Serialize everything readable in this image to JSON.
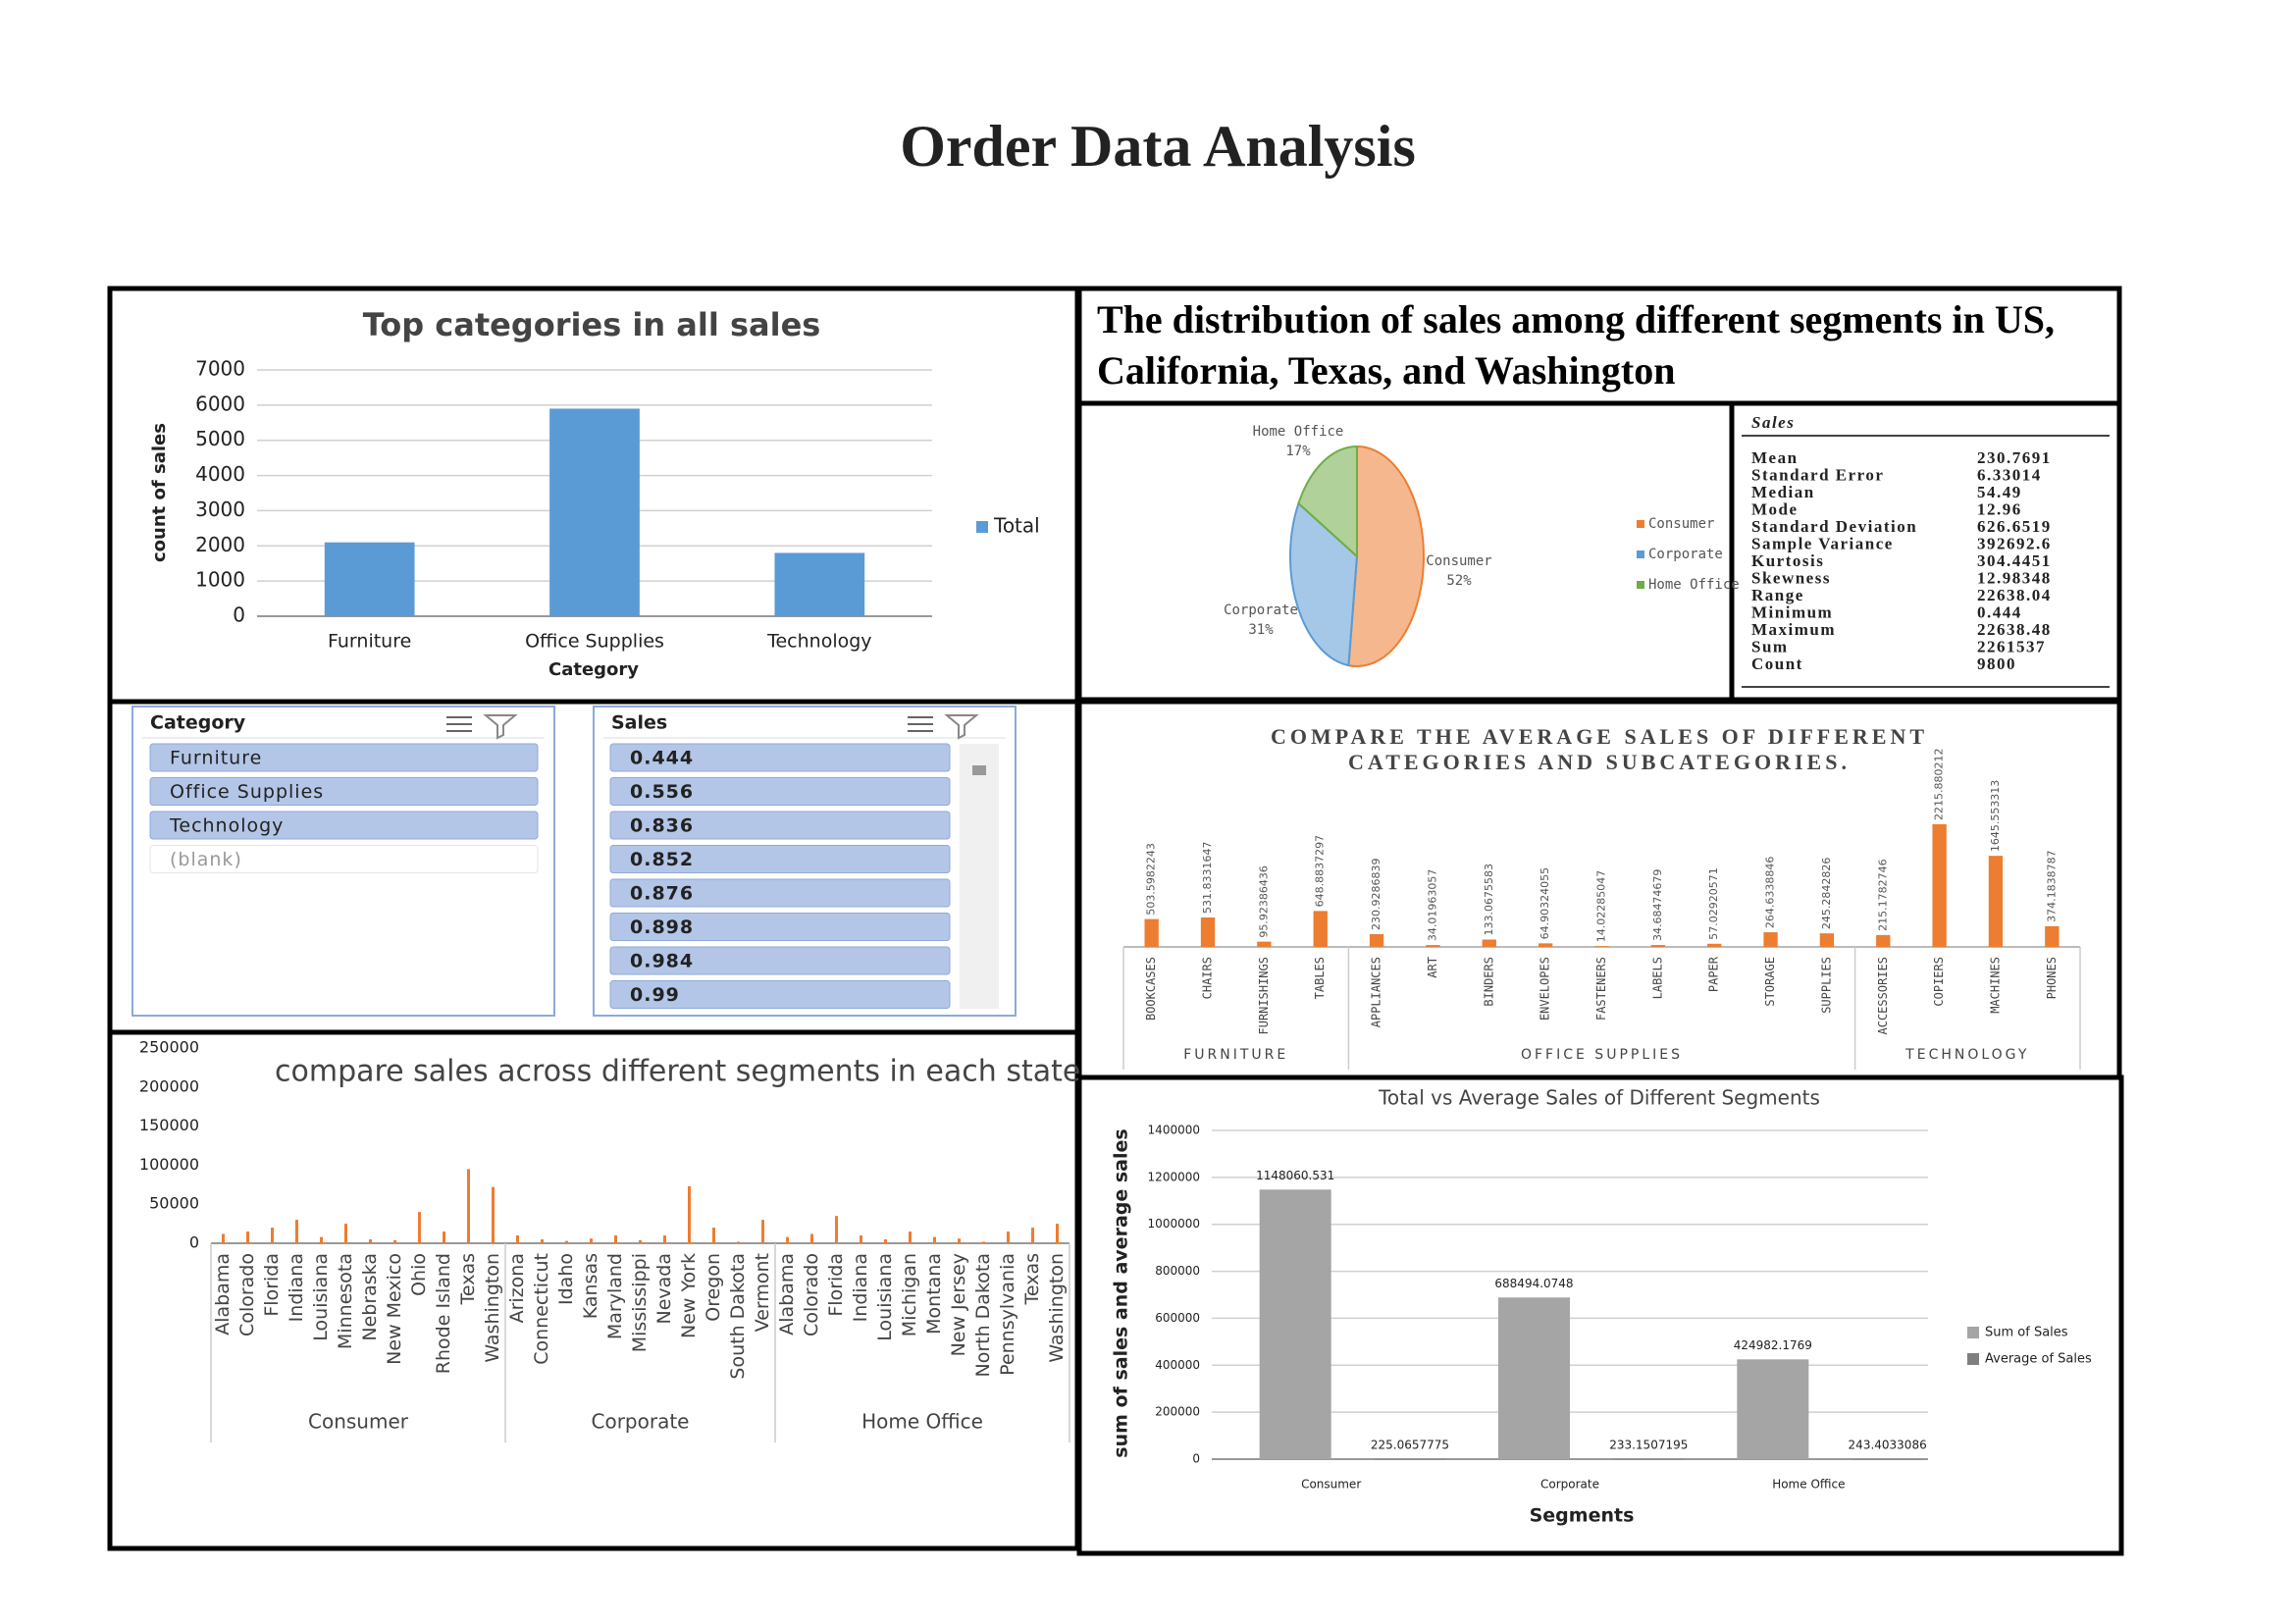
{
  "title": "Order Data Analysis",
  "chart_data": [
    {
      "type": "bar",
      "title": "Top categories in all sales",
      "x_label": "Category",
      "y_label": "count of sales",
      "categories": [
        "Furniture",
        "Office Supplies",
        "Technology"
      ],
      "series": [
        {
          "name": "Total",
          "color": "#5b9bd5",
          "values": [
            2100,
            5900,
            1800
          ]
        }
      ],
      "ylim": [
        0,
        7000
      ],
      "yticks": [
        0,
        1000,
        2000,
        3000,
        4000,
        5000,
        6000,
        7000
      ],
      "grid": true,
      "legend": "right"
    },
    {
      "type": "pie",
      "title": "The distribution of sales among different segments in US, California, Texas, and Washington",
      "categories": [
        "Consumer",
        "Corporate",
        "Home Office"
      ],
      "values": [
        52,
        31,
        17
      ],
      "value_labels": [
        "52%",
        "31%",
        "17%"
      ],
      "colors": [
        "#ed7d31",
        "#5b9bd5",
        "#70ad47"
      ],
      "legend": "right"
    },
    {
      "type": "bar",
      "title": "COMPARE THE AVERAGE SALES OF DIFFERENT CATEGORIES AND SUBCATEGORIES.",
      "color": "#ed7d31",
      "groups": [
        {
          "name": "FURNITURE",
          "categories": [
            "BOOKCASES",
            "CHAIRS",
            "FURNISHINGS",
            "TABLES"
          ],
          "values": [
            503.5982243,
            531.8331647,
            95.92386436,
            648.8837297
          ]
        },
        {
          "name": "OFFICE SUPPLIES",
          "categories": [
            "APPLIANCES",
            "ART",
            "BINDERS",
            "ENVELOPES",
            "FASTENERS",
            "LABELS",
            "PAPER",
            "STORAGE",
            "SUPPLIES"
          ],
          "values": [
            230.9286839,
            34.01963057,
            133.0675583,
            64.90324055,
            14.02285047,
            34.68474679,
            57.02920571,
            264.6338846,
            245.2842826
          ]
        },
        {
          "name": "TECHNOLOGY",
          "categories": [
            "ACCESSORIES",
            "COPIERS",
            "MACHINES",
            "PHONES"
          ],
          "values": [
            215.1782746,
            2215.880212,
            1645.553313,
            374.1838787
          ]
        }
      ]
    },
    {
      "type": "bar",
      "title": "compare sales across different segments in each state",
      "color": "#ed7d31",
      "ylim": [
        0,
        250000
      ],
      "yticks": [
        0,
        50000,
        100000,
        150000,
        200000,
        250000
      ],
      "groups": [
        {
          "name": "Consumer",
          "categories": [
            "Alabama",
            "Colorado",
            "Florida",
            "Indiana",
            "Louisiana",
            "Minnesota",
            "Nebraska",
            "New Mexico",
            "Ohio",
            "Rhode Island",
            "Texas",
            "Washington"
          ],
          "values": [
            12000,
            15000,
            20000,
            30000,
            8000,
            25000,
            5000,
            4000,
            40000,
            15000,
            95000,
            72000
          ]
        },
        {
          "name": "Corporate",
          "categories": [
            "Arizona",
            "Connecticut",
            "Idaho",
            "Kansas",
            "Maryland",
            "Mississippi",
            "Nevada",
            "New York",
            "Oregon",
            "South Dakota",
            "Vermont"
          ],
          "values": [
            10000,
            5000,
            3000,
            6000,
            10000,
            4000,
            10000,
            73000,
            20000,
            2000,
            30000
          ]
        },
        {
          "name": "Home Office",
          "categories": [
            "Alabama",
            "Colorado",
            "Florida",
            "Indiana",
            "Louisiana",
            "Michigan",
            "Montana",
            "New Jersey",
            "North Dakota",
            "Pennsylvania",
            "Texas",
            "Washington"
          ],
          "values": [
            8000,
            12000,
            35000,
            10000,
            5000,
            15000,
            8000,
            6000,
            2000,
            15000,
            20000,
            25000
          ]
        }
      ]
    },
    {
      "type": "bar",
      "title": "Total vs Average Sales of Different Segments",
      "x_label": "Segments",
      "y_label": "sum of sales and average sales",
      "categories": [
        "Consumer",
        "Corporate",
        "Home Office"
      ],
      "series": [
        {
          "name": "Sum of Sales",
          "color": "#a5a5a5",
          "values": [
            1148060.531,
            688494.0748,
            424982.1769
          ]
        },
        {
          "name": "Average of Sales",
          "color": "#7f7f7f",
          "values": [
            225.0657775,
            233.1507195,
            243.4033086
          ]
        }
      ],
      "ylim": [
        0,
        1400000
      ],
      "yticks": [
        0,
        200000,
        400000,
        600000,
        800000,
        1000000,
        1200000,
        1400000
      ],
      "grid": true,
      "legend": "right",
      "data_labels": true
    }
  ],
  "stats": {
    "title": "Sales",
    "rows": [
      [
        "Mean",
        230.7691
      ],
      [
        "Standard Error",
        6.33014
      ],
      [
        "Median",
        54.49
      ],
      [
        "Mode",
        12.96
      ],
      [
        "Standard Deviation",
        626.6519
      ],
      [
        "Sample Variance",
        392692.6
      ],
      [
        "Kurtosis",
        304.4451
      ],
      [
        "Skewness",
        12.98348
      ],
      [
        "Range",
        22638.04
      ],
      [
        "Minimum",
        0.444
      ],
      [
        "Maximum",
        22638.48
      ],
      [
        "Sum",
        2261537
      ],
      [
        "Count",
        9800
      ]
    ]
  },
  "slicers": [
    {
      "title": "Category",
      "items": [
        "Furniture",
        "Office Supplies",
        "Technology",
        "(blank)"
      ]
    },
    {
      "title": "Sales",
      "items": [
        0.444,
        0.556,
        0.836,
        0.852,
        0.876,
        0.898,
        0.984,
        0.99
      ]
    }
  ]
}
